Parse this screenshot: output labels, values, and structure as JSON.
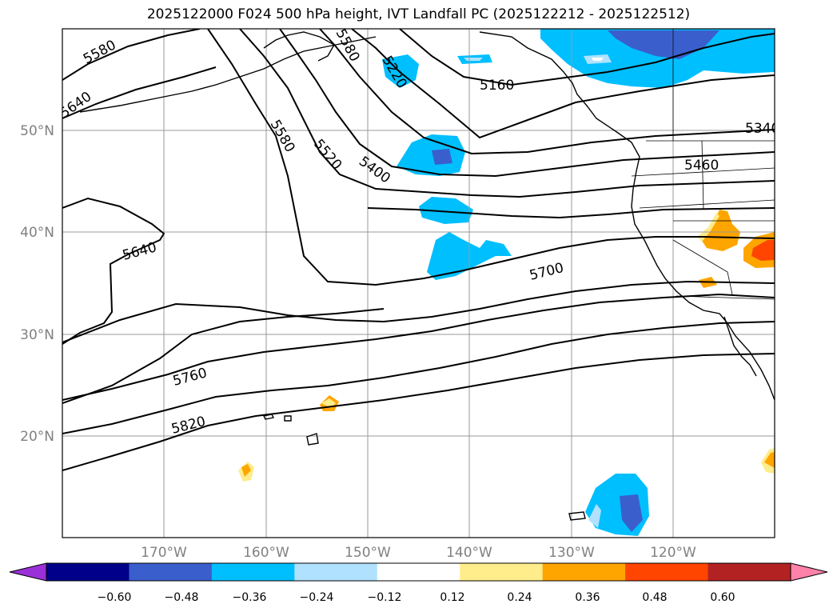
{
  "title": "2025122000 F024 500 hPa height, IVT Landfall PC (2025122212 - 2025122512)",
  "map": {
    "projection": "PlateCarree",
    "lon_range": [
      -180,
      -110
    ],
    "lat_range": [
      10,
      60
    ],
    "lat_ticks": [
      "50°N",
      "40°N",
      "30°N",
      "20°N"
    ],
    "lon_ticks": [
      "170°W",
      "160°W",
      "150°W",
      "140°W",
      "130°W",
      "120°W"
    ],
    "grid": true,
    "height_contour_labels": [
      "5580",
      "5640",
      "5580",
      "5520",
      "5400",
      "5220",
      "5160",
      "5340",
      "5460",
      "5640",
      "5700",
      "5760",
      "5820",
      "5580"
    ]
  },
  "colorbar": {
    "ticks": [
      "−0.60",
      "−0.48",
      "−0.36",
      "−0.24",
      "−0.12",
      "0.12",
      "0.24",
      "0.36",
      "0.48",
      "0.60"
    ],
    "colors": [
      "#9b30d9",
      "#00008b",
      "#3a5fcd",
      "#00bfff",
      "#b0e2ff",
      "#ffffff",
      "#ffec8b",
      "#ffa500",
      "#ff4500",
      "#b22222",
      "#ff82ab"
    ],
    "extend": "both"
  }
}
